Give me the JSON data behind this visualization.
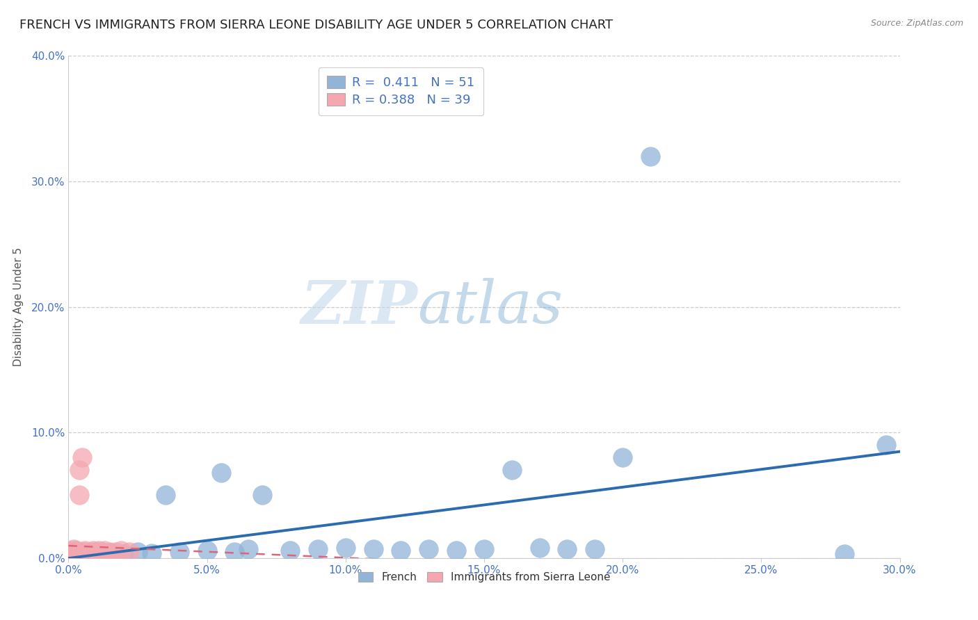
{
  "title": "FRENCH VS IMMIGRANTS FROM SIERRA LEONE DISABILITY AGE UNDER 5 CORRELATION CHART",
  "source": "Source: ZipAtlas.com",
  "ylabel": "Disability Age Under 5",
  "xlim": [
    0.0,
    0.3
  ],
  "ylim": [
    0.0,
    0.4
  ],
  "x_ticks": [
    0.0,
    0.05,
    0.1,
    0.15,
    0.2,
    0.25,
    0.3
  ],
  "y_ticks": [
    0.0,
    0.1,
    0.2,
    0.3,
    0.4
  ],
  "french_R": 0.411,
  "french_N": 51,
  "sierraleone_R": 0.388,
  "sierraleone_N": 39,
  "french_color": "#92b4d7",
  "sierraleone_color": "#f4a7b0",
  "french_line_color": "#2b6cb0",
  "sierraleone_line_color": "#d9667a",
  "tick_color": "#4472c4",
  "title_fontsize": 13,
  "axis_label_fontsize": 11,
  "tick_fontsize": 11,
  "legend_fontsize": 13,
  "watermark_zip": "ZIP",
  "watermark_atlas": "atlas",
  "french_x": [
    0.001,
    0.002,
    0.002,
    0.003,
    0.003,
    0.003,
    0.004,
    0.004,
    0.004,
    0.004,
    0.005,
    0.005,
    0.005,
    0.005,
    0.006,
    0.006,
    0.006,
    0.007,
    0.007,
    0.008,
    0.009,
    0.01,
    0.011,
    0.012,
    0.015,
    0.02,
    0.025,
    0.03,
    0.035,
    0.04,
    0.05,
    0.055,
    0.06,
    0.065,
    0.07,
    0.08,
    0.09,
    0.1,
    0.11,
    0.12,
    0.13,
    0.14,
    0.15,
    0.16,
    0.17,
    0.18,
    0.19,
    0.2,
    0.21,
    0.28,
    0.295
  ],
  "french_y": [
    0.002,
    0.001,
    0.003,
    0.002,
    0.001,
    0.003,
    0.001,
    0.002,
    0.003,
    0.002,
    0.001,
    0.002,
    0.003,
    0.001,
    0.002,
    0.001,
    0.003,
    0.002,
    0.001,
    0.002,
    0.003,
    0.002,
    0.004,
    0.003,
    0.004,
    0.003,
    0.005,
    0.004,
    0.05,
    0.005,
    0.006,
    0.068,
    0.005,
    0.007,
    0.05,
    0.006,
    0.007,
    0.008,
    0.007,
    0.006,
    0.007,
    0.006,
    0.007,
    0.07,
    0.008,
    0.007,
    0.007,
    0.08,
    0.32,
    0.003,
    0.09
  ],
  "sierraleone_x": [
    0.001,
    0.001,
    0.001,
    0.001,
    0.001,
    0.001,
    0.001,
    0.001,
    0.001,
    0.002,
    0.002,
    0.002,
    0.002,
    0.002,
    0.002,
    0.003,
    0.003,
    0.003,
    0.003,
    0.004,
    0.004,
    0.004,
    0.004,
    0.005,
    0.005,
    0.005,
    0.006,
    0.006,
    0.007,
    0.008,
    0.009,
    0.01,
    0.011,
    0.012,
    0.013,
    0.015,
    0.017,
    0.019,
    0.022
  ],
  "sierraleone_y": [
    0.001,
    0.002,
    0.002,
    0.003,
    0.003,
    0.004,
    0.005,
    0.005,
    0.006,
    0.002,
    0.003,
    0.004,
    0.005,
    0.006,
    0.007,
    0.003,
    0.004,
    0.005,
    0.006,
    0.003,
    0.004,
    0.05,
    0.07,
    0.004,
    0.005,
    0.08,
    0.005,
    0.006,
    0.004,
    0.005,
    0.006,
    0.005,
    0.006,
    0.005,
    0.006,
    0.005,
    0.005,
    0.006,
    0.005
  ]
}
